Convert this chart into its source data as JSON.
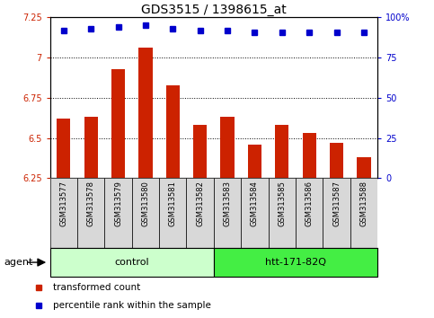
{
  "title": "GDS3515 / 1398615_at",
  "samples": [
    "GSM313577",
    "GSM313578",
    "GSM313579",
    "GSM313580",
    "GSM313581",
    "GSM313582",
    "GSM313583",
    "GSM313584",
    "GSM313585",
    "GSM313586",
    "GSM313587",
    "GSM313588"
  ],
  "bar_values": [
    6.62,
    6.63,
    6.93,
    7.06,
    6.83,
    6.58,
    6.63,
    6.46,
    6.58,
    6.53,
    6.47,
    6.38
  ],
  "percentile_values": [
    92,
    93,
    94,
    95,
    93,
    92,
    92,
    91,
    91,
    91,
    91,
    91
  ],
  "bar_color": "#cc2200",
  "dot_color": "#0000cc",
  "ylim_left": [
    6.25,
    7.25
  ],
  "ylim_right": [
    0,
    100
  ],
  "yticks_left": [
    6.25,
    6.5,
    6.75,
    7.0,
    7.25
  ],
  "yticks_right": [
    0,
    25,
    50,
    75,
    100
  ],
  "ytick_labels_left": [
    "6.25",
    "6.5",
    "6.75",
    "7",
    "7.25"
  ],
  "ytick_labels_right": [
    "0",
    "25",
    "50",
    "75",
    "100%"
  ],
  "gridlines": [
    6.5,
    6.75,
    7.0
  ],
  "groups": [
    {
      "label": "control",
      "start": 0,
      "end": 5,
      "color": "#ccffcc"
    },
    {
      "label": "htt-171-82Q",
      "start": 6,
      "end": 11,
      "color": "#44ee44"
    }
  ],
  "agent_label": "agent",
  "legend_items": [
    {
      "label": "transformed count",
      "color": "#cc2200"
    },
    {
      "label": "percentile rank within the sample",
      "color": "#0000cc"
    }
  ],
  "background_color": "#ffffff",
  "bar_color_hex": "#cc2200",
  "dot_color_hex": "#0000cc"
}
